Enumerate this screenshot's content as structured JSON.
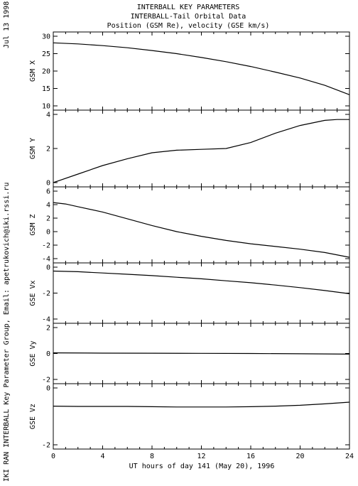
{
  "header": {
    "line1": "INTERBALL KEY PARAMETERS",
    "line2": "INTERBALL-Tail Orbital Data",
    "line3": "Position (GSM Re), velocity (GSE km/s)"
  },
  "side": {
    "date": "Jul 13 1998",
    "credit": "IKI RAN INTERBALL Key Parameter Group, Email: apetrukovich@iki.rssi.ru"
  },
  "xaxis": {
    "label": "UT hours of day 141 (May 20), 1996",
    "ticks": [
      "0",
      "4",
      "8",
      "12",
      "16",
      "20",
      "24"
    ]
  },
  "chart_data": [
    {
      "type": "line",
      "ylabel": "GSM X",
      "xlim": [
        0,
        24
      ],
      "ylim": [
        10,
        30
      ],
      "yticks": [
        10,
        15,
        20,
        25,
        30
      ],
      "x": [
        0,
        2,
        4,
        6,
        8,
        10,
        12,
        14,
        16,
        18,
        20,
        22,
        24
      ],
      "y": [
        28.1,
        27.8,
        27.3,
        26.7,
        25.9,
        25.0,
        23.9,
        22.7,
        21.3,
        19.7,
        18.0,
        15.9,
        13.2
      ]
    },
    {
      "type": "line",
      "ylabel": "GSM Y",
      "xlim": [
        0,
        24
      ],
      "ylim": [
        0,
        4
      ],
      "yticks": [
        0,
        2,
        4
      ],
      "x": [
        0,
        2,
        4,
        6,
        8,
        10,
        12,
        14,
        16,
        18,
        20,
        22,
        23,
        24
      ],
      "y": [
        0.0,
        0.5,
        1.0,
        1.4,
        1.75,
        1.9,
        1.95,
        2.0,
        2.35,
        2.9,
        3.35,
        3.65,
        3.7,
        3.7
      ]
    },
    {
      "type": "line",
      "ylabel": "GSM Z",
      "xlim": [
        0,
        24
      ],
      "ylim": [
        -4,
        6
      ],
      "yticks": [
        -4,
        -2,
        0,
        2,
        4,
        6
      ],
      "x": [
        0,
        1,
        2,
        4,
        6,
        8,
        10,
        12,
        14,
        16,
        18,
        20,
        22,
        24
      ],
      "y": [
        4.3,
        4.1,
        3.7,
        2.9,
        1.9,
        0.9,
        0.0,
        -0.7,
        -1.3,
        -1.8,
        -2.2,
        -2.6,
        -3.1,
        -3.8
      ]
    },
    {
      "type": "line",
      "ylabel": "GSE Vx",
      "xlim": [
        0,
        24
      ],
      "ylim": [
        -4,
        0
      ],
      "yticks": [
        -4,
        -2,
        0
      ],
      "x": [
        0,
        2,
        4,
        6,
        8,
        10,
        12,
        14,
        16,
        18,
        20,
        22,
        24
      ],
      "y": [
        -0.3,
        -0.35,
        -0.45,
        -0.55,
        -0.65,
        -0.78,
        -0.9,
        -1.05,
        -1.2,
        -1.38,
        -1.58,
        -1.8,
        -2.05
      ]
    },
    {
      "type": "line",
      "ylabel": "GSE Vy",
      "xlim": [
        0,
        24
      ],
      "ylim": [
        -2,
        2
      ],
      "yticks": [
        -2,
        0,
        2
      ],
      "x": [
        0,
        4,
        8,
        12,
        16,
        20,
        24
      ],
      "y": [
        0.05,
        0.03,
        0.02,
        0.01,
        0.0,
        -0.02,
        -0.05
      ]
    },
    {
      "type": "line",
      "ylabel": "GSE Vz",
      "xlim": [
        0,
        24
      ],
      "ylim": [
        -2,
        0
      ],
      "yticks": [
        -2,
        0
      ],
      "x": [
        0,
        2,
        4,
        6,
        8,
        10,
        12,
        14,
        16,
        18,
        20,
        22,
        24
      ],
      "y": [
        -0.64,
        -0.65,
        -0.65,
        -0.65,
        -0.66,
        -0.67,
        -0.67,
        -0.67,
        -0.66,
        -0.64,
        -0.61,
        -0.56,
        -0.5
      ]
    }
  ]
}
